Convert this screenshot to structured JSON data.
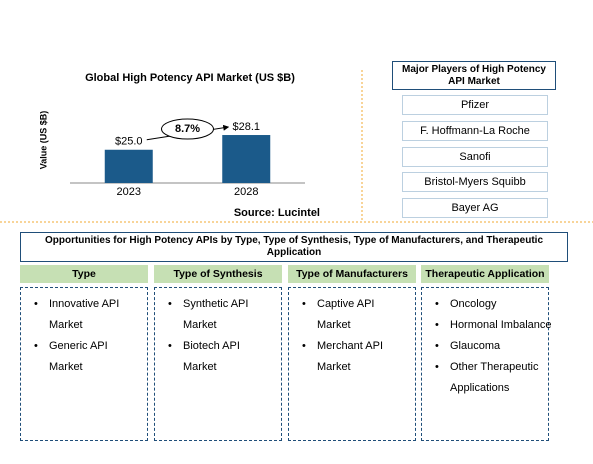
{
  "chart_data": {
    "type": "bar",
    "title": "Global High Potency API Market (US $B)",
    "y_label": "Value (US $B)",
    "categories": [
      "2023",
      "2028"
    ],
    "values": [
      25.0,
      28.1
    ],
    "value_labels": [
      "$25.0",
      "$28.1"
    ],
    "color": "#1b5a8a",
    "ylim": [
      18,
      30
    ],
    "annotation": "8.7%",
    "source": "Source: Lucintel"
  },
  "players": {
    "title": "Major Players of High Potency API Market",
    "items": [
      "Pfizer",
      "F. Hoffmann-La Roche",
      "Sanofi",
      "Bristol-Myers Squibb",
      "Bayer AG"
    ]
  },
  "opportunities": {
    "title": "Opportunities for High Potency APIs by Type, Type of Synthesis, Type of Manufacturers, and Therapeutic Application",
    "columns": [
      {
        "header": "Type",
        "items": [
          "Innovative API Market",
          "Generic API Market"
        ]
      },
      {
        "header": "Type of Synthesis",
        "items": [
          "Synthetic API Market",
          "Biotech API Market"
        ]
      },
      {
        "header": "Type of Manufacturers",
        "items": [
          "Captive API Market",
          "Merchant API Market"
        ]
      },
      {
        "header": "Therapeutic Application",
        "items": [
          "Oncology",
          "Hormonal Imbalance",
          "Glaucoma",
          "Other Therapeutic Applications"
        ]
      }
    ]
  }
}
